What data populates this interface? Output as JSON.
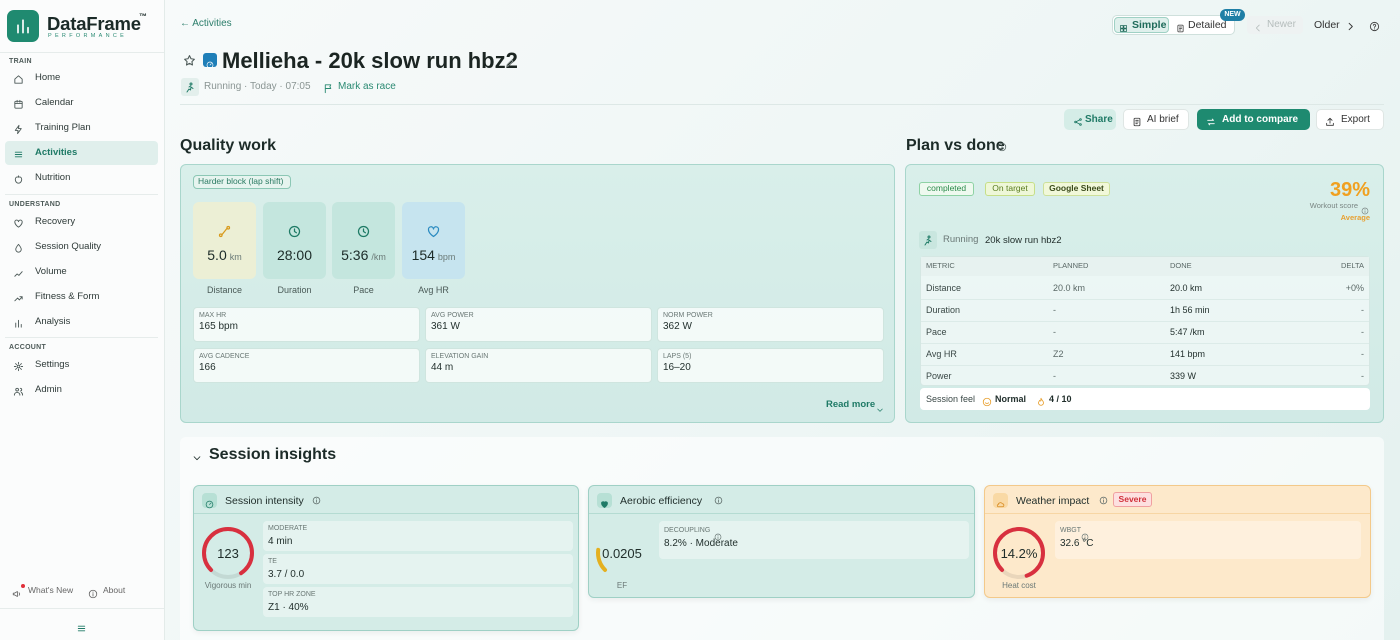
{
  "sidebar": {
    "brand": "DataFrame",
    "brand_tm": "™",
    "brand_tagline": "PERFORMANCE",
    "sections": [
      {
        "title": "TRAIN",
        "items": [
          "Home",
          "Calendar",
          "Training Plan",
          "Activities",
          "Nutrition"
        ]
      },
      {
        "title": "UNDERSTAND",
        "items": [
          "Recovery",
          "Session Quality",
          "Volume",
          "Fitness & Form",
          "Analysis"
        ]
      },
      {
        "title": "ACCOUNT",
        "items": [
          "Settings",
          "Admin"
        ]
      }
    ],
    "footer": [
      "What's New",
      "About"
    ]
  },
  "header": {
    "back": "← Activities",
    "views": [
      "Simple",
      "Detailed"
    ],
    "new_badge": "NEW",
    "newer": "Newer",
    "older": "Older",
    "title": "Mellieha - 20k slow run hbz2",
    "meta": "Running · Today · 07:05",
    "mark_race": "Mark as race",
    "actions": [
      "Share",
      "AI brief",
      "Add to compare",
      "Export"
    ]
  },
  "quality_work": {
    "title": "Quality work",
    "tag": "Harder block (lap shift)",
    "tiles": [
      {
        "value": "5.0",
        "unit": "km",
        "label": "Distance"
      },
      {
        "value": "28:00",
        "label": "Duration"
      },
      {
        "value": "5:36",
        "unit": "/km",
        "label": "Pace"
      },
      {
        "value": "154",
        "unit": "bpm",
        "label": "Avg HR"
      }
    ],
    "stats": [
      {
        "label": "MAX HR",
        "value": "165 bpm"
      },
      {
        "label": "AVG POWER",
        "value": "361 W"
      },
      {
        "label": "NORM POWER",
        "value": "362 W"
      },
      {
        "label": "AVG CADENCE",
        "value": "166"
      },
      {
        "label": "ELEVATION GAIN",
        "value": "44 m"
      },
      {
        "label": "LAPS (5)",
        "value": "16–20"
      }
    ],
    "read_more": "Read more"
  },
  "plan_vs_done": {
    "title": "Plan vs done",
    "badges": [
      "completed",
      "On target",
      "Google Sheet"
    ],
    "score": "39%",
    "score_label": "Workout score",
    "score_grade": "Average",
    "sport": "Running",
    "workout": "20k slow run hbz2",
    "table": {
      "headers": [
        "METRIC",
        "PLANNED",
        "DONE",
        "DELTA"
      ],
      "rows": [
        [
          "Distance",
          "20.0 km",
          "20.0 km",
          "+0%"
        ],
        [
          "Duration",
          "-",
          "1h 56 min",
          "-"
        ],
        [
          "Pace",
          "-",
          "5:47 /km",
          "-"
        ],
        [
          "Avg HR",
          "Z2",
          "141 bpm",
          "-"
        ],
        [
          "Power",
          "-",
          "339 W",
          "-"
        ]
      ]
    },
    "session_feel": {
      "label": "Session feel",
      "feel": "Normal",
      "rpe": "4 / 10"
    }
  },
  "session_insights": {
    "title": "Session insights",
    "cards": [
      {
        "title": "Session intensity",
        "gauge": "123",
        "gauge_label": "Vigorous min",
        "stats": [
          {
            "label": "MODERATE",
            "value": "4 min"
          },
          {
            "label": "TE",
            "value": "3.7 / 0.0"
          },
          {
            "label": "TOP HR ZONE",
            "value": "Z1 · 40%"
          }
        ]
      },
      {
        "title": "Aerobic efficiency",
        "gauge": "0.0205",
        "gauge_label": "EF",
        "stats": [
          {
            "label": "DECOUPLING",
            "value": "8.2% · Moderate"
          }
        ]
      },
      {
        "title": "Weather impact",
        "badge": "Severe",
        "gauge": "14.2%",
        "gauge_label": "Heat cost",
        "stats": [
          {
            "label": "WBGT",
            "value": "32.6 °C"
          }
        ]
      }
    ]
  }
}
